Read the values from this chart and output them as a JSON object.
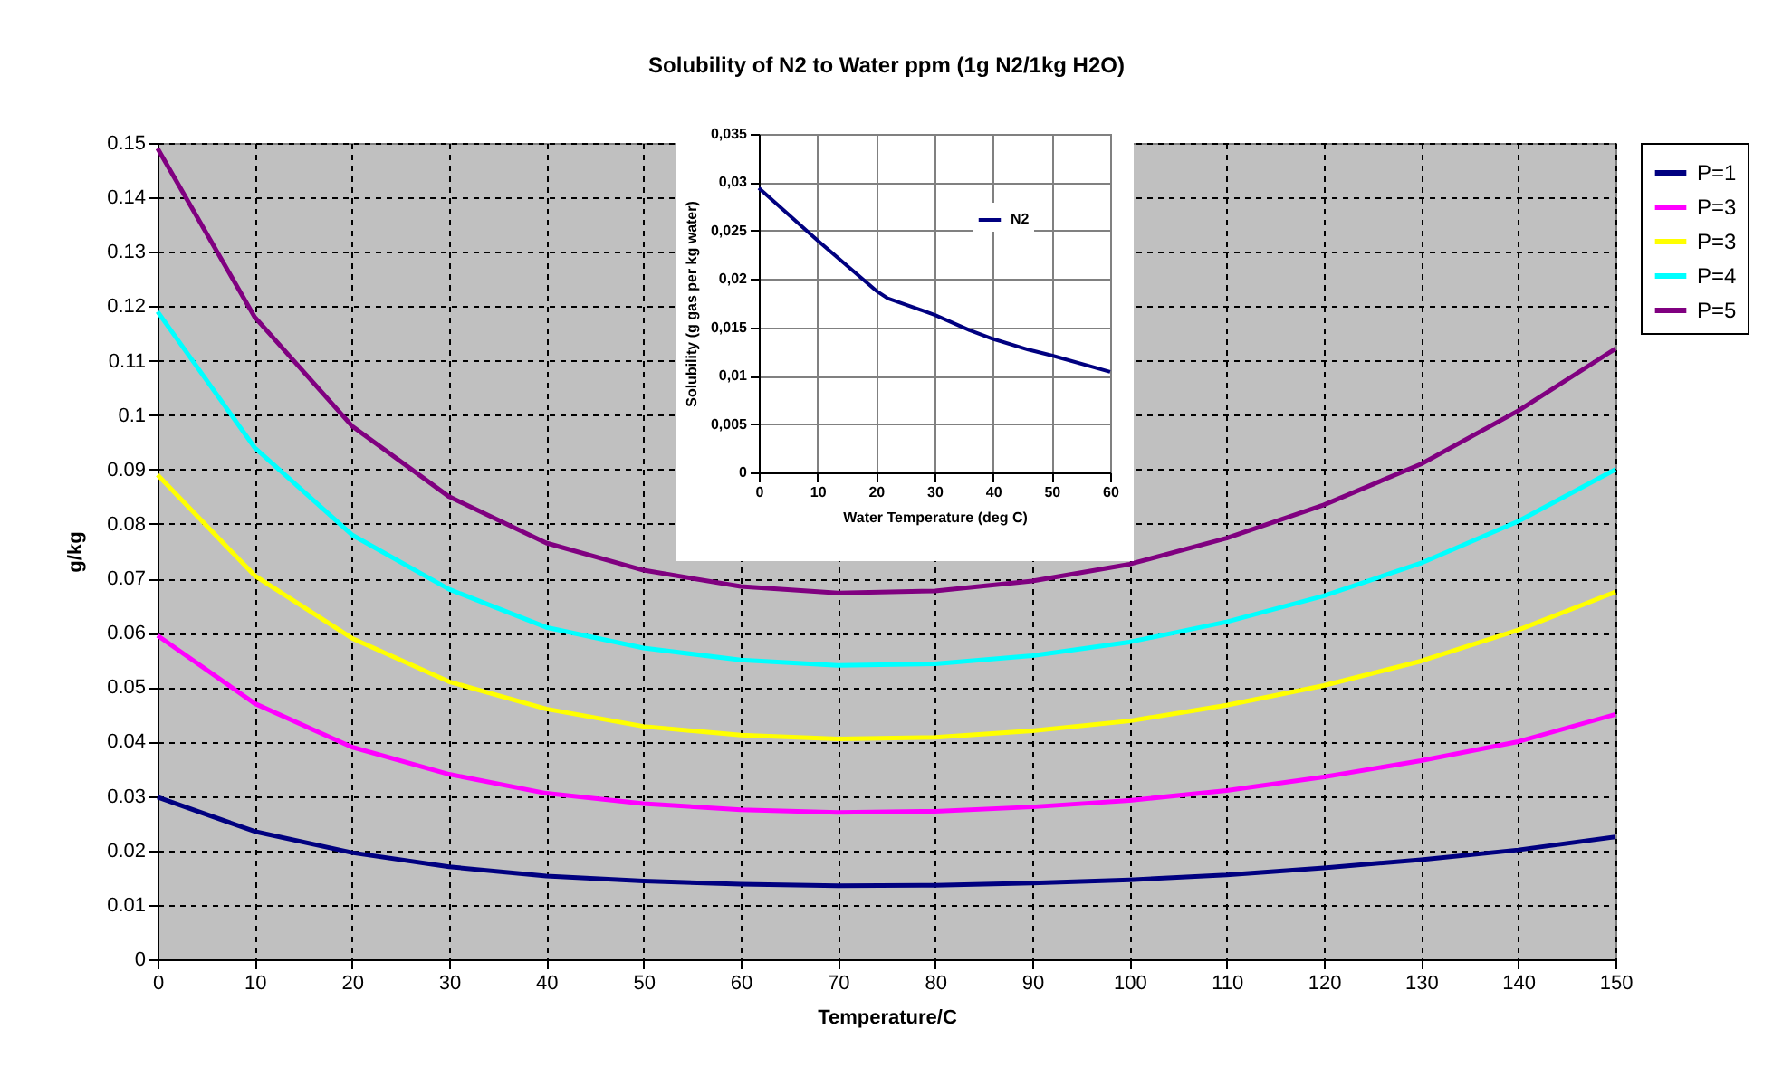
{
  "chart_data": [
    {
      "type": "line",
      "title": "Solubility of N2 to Water ppm (1g N2/1kg H2O)",
      "xlabel": "Temperature/C",
      "ylabel": "g/kg",
      "x": [
        0,
        10,
        20,
        30,
        40,
        50,
        60,
        70,
        80,
        90,
        100,
        110,
        120,
        130,
        140,
        150
      ],
      "series": [
        {
          "name": "P=1",
          "color": "#000080",
          "values": [
            0.0298,
            0.0235,
            0.0196,
            0.017,
            0.0153,
            0.0144,
            0.0138,
            0.0135,
            0.0136,
            0.014,
            0.0146,
            0.0155,
            0.0168,
            0.0183,
            0.0201,
            0.0225
          ]
        },
        {
          "name": "P=3",
          "color": "#ff00ff",
          "values": [
            0.0595,
            0.047,
            0.039,
            0.034,
            0.0305,
            0.0286,
            0.0275,
            0.027,
            0.0272,
            0.028,
            0.0292,
            0.031,
            0.0335,
            0.0365,
            0.04,
            0.045
          ]
        },
        {
          "name": "P=3",
          "color": "#ffff00",
          "values": [
            0.089,
            0.0705,
            0.059,
            0.051,
            0.046,
            0.0428,
            0.0412,
            0.0405,
            0.0408,
            0.042,
            0.0438,
            0.0467,
            0.0503,
            0.0548,
            0.0605,
            0.0675
          ]
        },
        {
          "name": "P=4",
          "color": "#00ffff",
          "values": [
            0.119,
            0.094,
            0.078,
            0.068,
            0.061,
            0.0572,
            0.055,
            0.054,
            0.0543,
            0.0558,
            0.0583,
            0.062,
            0.0668,
            0.0728,
            0.0805,
            0.09
          ]
        },
        {
          "name": "P=5",
          "color": "#800080",
          "values": [
            0.149,
            0.118,
            0.098,
            0.085,
            0.0765,
            0.0715,
            0.0685,
            0.0673,
            0.0677,
            0.0695,
            0.0726,
            0.0774,
            0.0835,
            0.091,
            0.1008,
            0.1122
          ]
        }
      ],
      "xlim": [
        0,
        150
      ],
      "xticks": [
        0,
        10,
        20,
        30,
        40,
        50,
        60,
        70,
        80,
        90,
        100,
        110,
        120,
        130,
        140,
        150
      ],
      "ylim": [
        0,
        0.15
      ],
      "yticks": [
        0,
        0.01,
        0.02,
        0.03,
        0.04,
        0.05,
        0.06,
        0.07,
        0.08,
        0.09,
        0.1,
        0.11,
        0.12,
        0.13,
        0.14,
        0.15
      ],
      "grid": true,
      "legend": "right"
    },
    {
      "type": "line",
      "xlabel": "Water Temperature (deg C)",
      "ylabel": "Solubility (g gas per kg water)",
      "x": [
        0,
        10,
        20,
        22,
        30,
        36,
        40,
        46,
        50,
        60
      ],
      "series": [
        {
          "name": "N2",
          "color": "#000080",
          "values": [
            0.0294,
            0.024,
            0.0188,
            0.018,
            0.0163,
            0.0147,
            0.0138,
            0.0127,
            0.0121,
            0.0104
          ]
        }
      ],
      "xlim": [
        0,
        60
      ],
      "xticks": [
        0,
        10,
        20,
        30,
        40,
        50,
        60
      ],
      "ylim": [
        0,
        0.035
      ],
      "yticks": [
        0,
        {
          "value": 0.005,
          "label": "0,005"
        },
        {
          "value": 0.01,
          "label": "0,01"
        },
        {
          "value": 0.015,
          "label": "0,015"
        },
        {
          "value": 0.02,
          "label": "0,02"
        },
        {
          "value": 0.025,
          "label": "0,025"
        },
        {
          "value": 0.03,
          "label": "0,03"
        },
        {
          "value": 0.035,
          "label": "0,035"
        }
      ],
      "grid": true,
      "legend": "right"
    }
  ]
}
